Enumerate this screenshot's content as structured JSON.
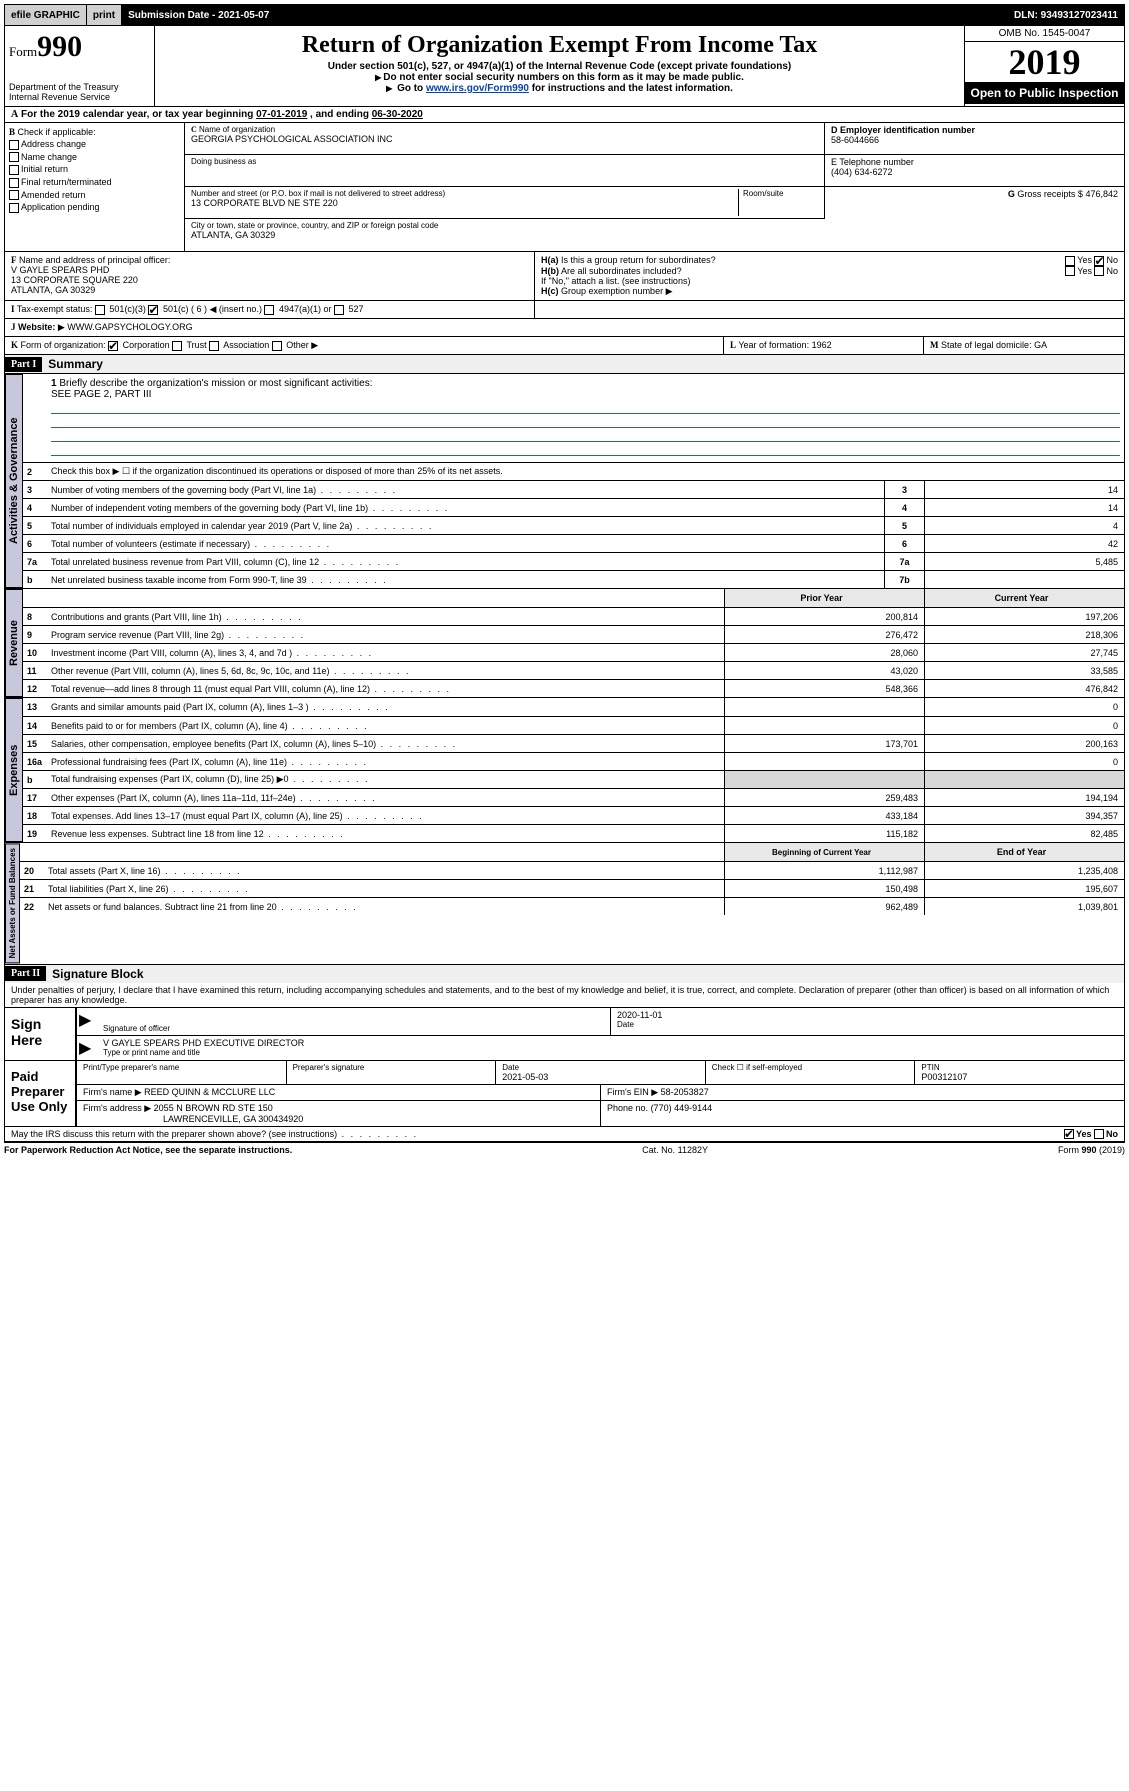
{
  "topbar": {
    "efile_label": "efile GRAPHIC",
    "print_label": "print",
    "submission_label": "Submission Date - 2021-05-07",
    "dln_label": "DLN: 93493127023411"
  },
  "header": {
    "form_word": "Form",
    "form_number": "990",
    "dept": "Department of the Treasury",
    "irs": "Internal Revenue Service",
    "title": "Return of Organization Exempt From Income Tax",
    "subtitle1": "Under section 501(c), 527, or 4947(a)(1) of the Internal Revenue Code (except private foundations)",
    "subtitle2": "Do not enter social security numbers on this form as it may be made public.",
    "subtitle3_pre": "Go to ",
    "subtitle3_link": "www.irs.gov/Form990",
    "subtitle3_post": " for instructions and the latest information.",
    "omb": "OMB No. 1545-0047",
    "year": "2019",
    "open": "Open to Public Inspection"
  },
  "period": {
    "label_a": "A",
    "text1": "For the 2019 calendar year, or tax year beginning ",
    "begin": "07-01-2019",
    "text2": " , and ending ",
    "end": "06-30-2020"
  },
  "b": {
    "label": "B",
    "check_if": "Check if applicable:",
    "opts": [
      "Address change",
      "Name change",
      "Initial return",
      "Final return/terminated",
      "Amended return",
      "Application pending"
    ]
  },
  "c": {
    "label": "C",
    "name_label": "Name of organization",
    "name": "GEORGIA PSYCHOLOGICAL ASSOCIATION INC",
    "dba_label": "Doing business as",
    "addr_label": "Number and street (or P.O. box if mail is not delivered to street address)",
    "room_label": "Room/suite",
    "addr": "13 CORPORATE BLVD NE STE 220",
    "city_label": "City or town, state or province, country, and ZIP or foreign postal code",
    "city": "ATLANTA, GA  30329"
  },
  "d": {
    "label": "D Employer identification number",
    "value": "58-6044666"
  },
  "e": {
    "label": "E Telephone number",
    "value": "(404) 634-6272"
  },
  "g": {
    "label": "G",
    "text": "Gross receipts $",
    "value": "476,842"
  },
  "f": {
    "label": "F",
    "text": "Name and address of principal officer:",
    "name": "V GAYLE SPEARS PHD",
    "addr1": "13 CORPORATE SQUARE 220",
    "addr2": "ATLANTA, GA  30329"
  },
  "h": {
    "a_label": "H(a)",
    "a_text": "Is this a group return for subordinates?",
    "b_label": "H(b)",
    "b_text": "Are all subordinates included?",
    "b_note": "If \"No,\" attach a list. (see instructions)",
    "c_label": "H(c)",
    "c_text": "Group exemption number",
    "yes": "Yes",
    "no": "No"
  },
  "i": {
    "label": "I",
    "text": "Tax-exempt status:",
    "c3": "501(c)(3)",
    "c": "501(c) ( 6 )",
    "insert": "(insert no.)",
    "a4947": "4947(a)(1) or",
    "s527": "527"
  },
  "j": {
    "label": "J",
    "text": "Website:",
    "value": "WWW.GAPSYCHOLOGY.ORG"
  },
  "k": {
    "label": "K",
    "text": "Form of organization:",
    "opts": [
      "Corporation",
      "Trust",
      "Association",
      "Other"
    ]
  },
  "l": {
    "label": "L",
    "text": "Year of formation:",
    "value": "1962"
  },
  "m": {
    "label": "M",
    "text": "State of legal domicile:",
    "value": "GA"
  },
  "part1": {
    "hdr": "Part I",
    "title": "Summary",
    "tab_ag": "Activities & Governance",
    "tab_rev": "Revenue",
    "tab_exp": "Expenses",
    "tab_na": "Net Assets or Fund Balances",
    "l1_num": "1",
    "l1": "Briefly describe the organization's mission or most significant activities:",
    "l1_val": "SEE PAGE 2, PART III",
    "l2_num": "2",
    "l2": "Check this box ▶ ☐ if the organization discontinued its operations or disposed of more than 25% of its net assets.",
    "lines_ag": [
      {
        "n": "3",
        "t": "Number of voting members of the governing body (Part VI, line 1a)",
        "s": "3",
        "v": "14"
      },
      {
        "n": "4",
        "t": "Number of independent voting members of the governing body (Part VI, line 1b)",
        "s": "4",
        "v": "14"
      },
      {
        "n": "5",
        "t": "Total number of individuals employed in calendar year 2019 (Part V, line 2a)",
        "s": "5",
        "v": "4"
      },
      {
        "n": "6",
        "t": "Total number of volunteers (estimate if necessary)",
        "s": "6",
        "v": "42"
      },
      {
        "n": "7a",
        "t": "Total unrelated business revenue from Part VIII, column (C), line 12",
        "s": "7a",
        "v": "5,485"
      },
      {
        "n": "b",
        "t": "Net unrelated business taxable income from Form 990-T, line 39",
        "s": "7b",
        "v": ""
      }
    ],
    "col_prior": "Prior Year",
    "col_curr": "Current Year",
    "lines_rev": [
      {
        "n": "8",
        "t": "Contributions and grants (Part VIII, line 1h)",
        "p": "200,814",
        "c": "197,206"
      },
      {
        "n": "9",
        "t": "Program service revenue (Part VIII, line 2g)",
        "p": "276,472",
        "c": "218,306"
      },
      {
        "n": "10",
        "t": "Investment income (Part VIII, column (A), lines 3, 4, and 7d )",
        "p": "28,060",
        "c": "27,745"
      },
      {
        "n": "11",
        "t": "Other revenue (Part VIII, column (A), lines 5, 6d, 8c, 9c, 10c, and 11e)",
        "p": "43,020",
        "c": "33,585"
      },
      {
        "n": "12",
        "t": "Total revenue—add lines 8 through 11 (must equal Part VIII, column (A), line 12)",
        "p": "548,366",
        "c": "476,842"
      }
    ],
    "lines_exp": [
      {
        "n": "13",
        "t": "Grants and similar amounts paid (Part IX, column (A), lines 1–3 )",
        "p": "",
        "c": "0"
      },
      {
        "n": "14",
        "t": "Benefits paid to or for members (Part IX, column (A), line 4)",
        "p": "",
        "c": "0"
      },
      {
        "n": "15",
        "t": "Salaries, other compensation, employee benefits (Part IX, column (A), lines 5–10)",
        "p": "173,701",
        "c": "200,163"
      },
      {
        "n": "16a",
        "t": "Professional fundraising fees (Part IX, column (A), line 11e)",
        "p": "",
        "c": "0"
      },
      {
        "n": "b",
        "t": "Total fundraising expenses (Part IX, column (D), line 25) ▶0",
        "p": "",
        "c": "",
        "shade": true
      },
      {
        "n": "17",
        "t": "Other expenses (Part IX, column (A), lines 11a–11d, 11f–24e)",
        "p": "259,483",
        "c": "194,194"
      },
      {
        "n": "18",
        "t": "Total expenses. Add lines 13–17 (must equal Part IX, column (A), line 25)",
        "p": "433,184",
        "c": "394,357"
      },
      {
        "n": "19",
        "t": "Revenue less expenses. Subtract line 18 from line 12",
        "p": "115,182",
        "c": "82,485"
      }
    ],
    "col_beg": "Beginning of Current Year",
    "col_end": "End of Year",
    "lines_na": [
      {
        "n": "20",
        "t": "Total assets (Part X, line 16)",
        "p": "1,112,987",
        "c": "1,235,408"
      },
      {
        "n": "21",
        "t": "Total liabilities (Part X, line 26)",
        "p": "150,498",
        "c": "195,607"
      },
      {
        "n": "22",
        "t": "Net assets or fund balances. Subtract line 21 from line 20",
        "p": "962,489",
        "c": "1,039,801"
      }
    ]
  },
  "part2": {
    "hdr": "Part II",
    "title": "Signature Block",
    "jurat": "Under penalties of perjury, I declare that I have examined this return, including accompanying schedules and statements, and to the best of my knowledge and belief, it is true, correct, and complete. Declaration of preparer (other than officer) is based on all information of which preparer has any knowledge."
  },
  "sign": {
    "here": "Sign Here",
    "sig_label": "Signature of officer",
    "date_label": "Date",
    "date": "2020-11-01",
    "name": "V GAYLE SPEARS PHD  EXECUTIVE DIRECTOR",
    "name_label": "Type or print name and title"
  },
  "paid": {
    "here": "Paid Preparer Use Only",
    "name_label": "Print/Type preparer's name",
    "sig_label": "Preparer's signature",
    "date_label": "Date",
    "date": "2021-05-03",
    "self_label": "Check ☐ if self-employed",
    "ptin_label": "PTIN",
    "ptin": "P00312107",
    "firm_name_label": "Firm's name",
    "firm_name": "REED QUINN & MCCLURE LLC",
    "firm_ein_label": "Firm's EIN ▶",
    "firm_ein": "58-2053827",
    "firm_addr_label": "Firm's address",
    "firm_addr1": "2055 N BROWN RD STE 150",
    "firm_addr2": "LAWRENCEVILLE, GA  300434920",
    "phone_label": "Phone no.",
    "phone": "(770) 449-9144"
  },
  "discuss": {
    "text": "May the IRS discuss this return with the preparer shown above? (see instructions)",
    "yes": "Yes",
    "no": "No"
  },
  "footer": {
    "pra": "For Paperwork Reduction Act Notice, see the separate instructions.",
    "cat": "Cat. No. 11282Y",
    "form": "Form 990 (2019)"
  }
}
